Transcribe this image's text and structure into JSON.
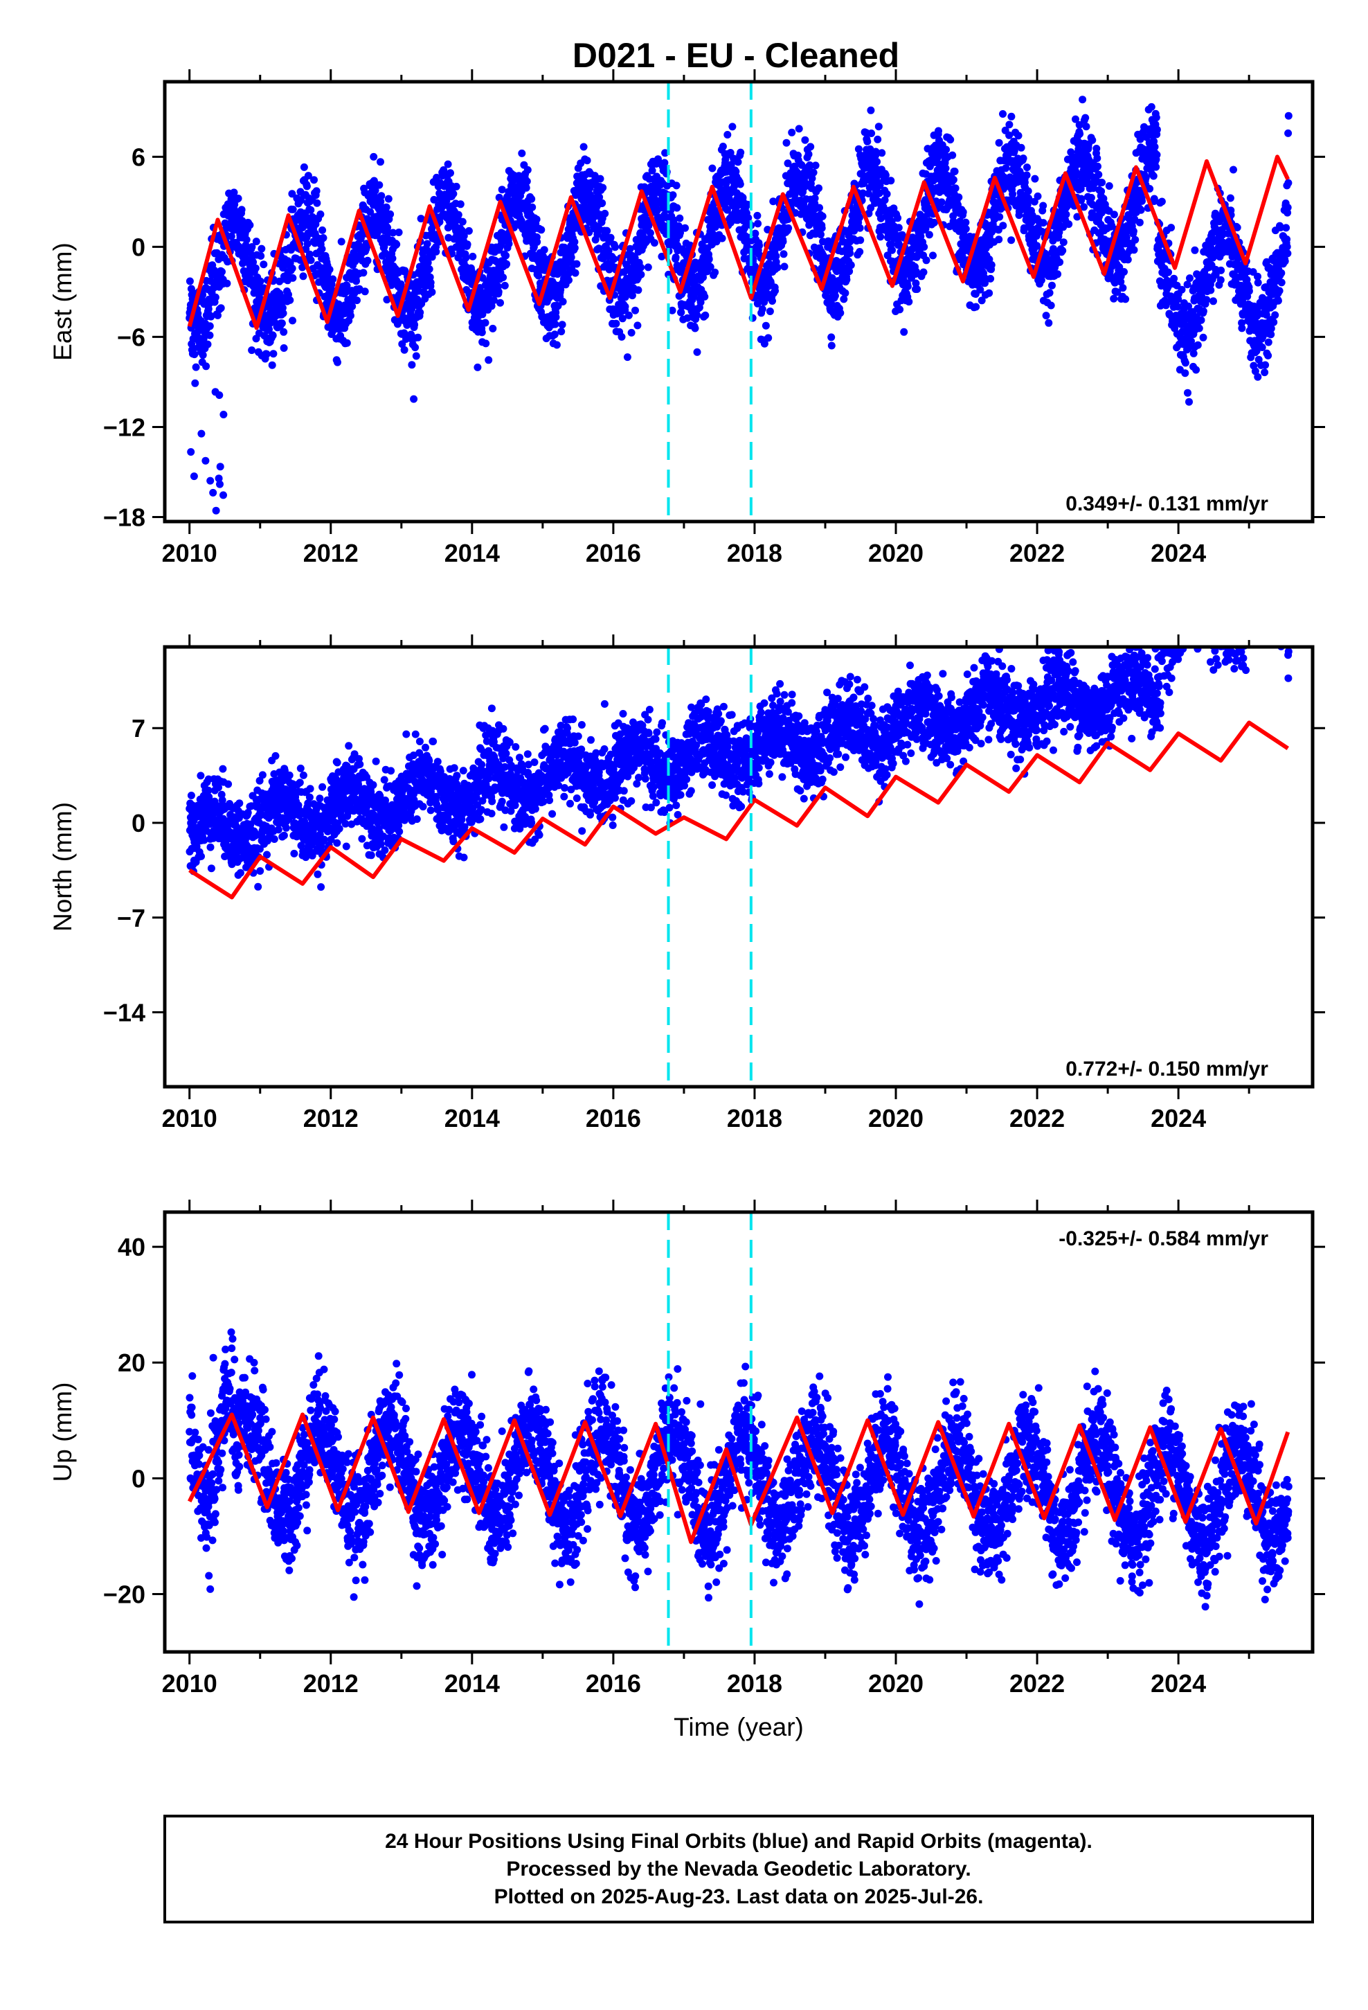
{
  "title": "D021  - EU - Cleaned",
  "colors": {
    "final_orbits": "#0000ff",
    "model": "#ff0000",
    "breaks": "#00e5ee",
    "frame": "#000000"
  },
  "chart_data": [
    {
      "type": "scatter",
      "ylabel": "East (mm)",
      "xlim": [
        2009.65,
        2025.9
      ],
      "ylim": [
        -18.3,
        11
      ],
      "yticks": [
        6,
        0,
        -6,
        -12,
        -18
      ],
      "xticks": [
        2010,
        2012,
        2014,
        2016,
        2018,
        2020,
        2022,
        2024
      ],
      "breaks": [
        2016.78,
        2017.95
      ],
      "rate": "0.349+/- 0.131 mm/yr",
      "rate_position": "bottom-right",
      "model": {
        "offset": -1.95,
        "slope": 0.35,
        "amp": 3.4,
        "phase": 0.38
      },
      "scatter_sigma": 1.5,
      "model_points": [
        [
          2010.0,
          -5.3
        ],
        [
          2010.4,
          1.8
        ],
        [
          2010.95,
          -5.4
        ],
        [
          2011.4,
          2.1
        ],
        [
          2011.95,
          -5.0
        ],
        [
          2012.4,
          2.4
        ],
        [
          2012.95,
          -4.6
        ],
        [
          2013.4,
          2.7
        ],
        [
          2013.95,
          -4.2
        ],
        [
          2014.4,
          3.0
        ],
        [
          2014.95,
          -3.8
        ],
        [
          2015.4,
          3.3
        ],
        [
          2015.95,
          -3.4
        ],
        [
          2016.4,
          3.7
        ],
        [
          2016.95,
          -3.0
        ],
        [
          2017.4,
          4.0
        ],
        [
          2017.95,
          -3.4
        ],
        [
          2018.4,
          3.5
        ],
        [
          2018.95,
          -2.8
        ],
        [
          2019.4,
          4.0
        ],
        [
          2019.95,
          -2.6
        ],
        [
          2020.4,
          4.3
        ],
        [
          2020.95,
          -2.3
        ],
        [
          2021.4,
          4.6
        ],
        [
          2021.95,
          -2.0
        ],
        [
          2022.4,
          4.9
        ],
        [
          2022.95,
          -1.8
        ],
        [
          2023.4,
          5.3
        ],
        [
          2023.95,
          -1.4
        ],
        [
          2024.4,
          5.7
        ],
        [
          2024.95,
          -1.1
        ],
        [
          2025.4,
          6.0
        ],
        [
          2025.55,
          4.5
        ]
      ],
      "data_anomalies": [
        {
          "x": [
            2010.0,
            2010.5
          ],
          "y": [
            -17.8,
            -9.0
          ],
          "note": "early noisy"
        },
        {
          "x": [
            2023.7,
            2025.55
          ],
          "y": [
            -9.5,
            1.0
          ],
          "note": "offset low"
        }
      ]
    },
    {
      "type": "scatter",
      "ylabel": "North (mm)",
      "xlim": [
        2009.65,
        2025.9
      ],
      "ylim": [
        -19.5,
        13
      ],
      "yticks": [
        7,
        0,
        -7,
        -14
      ],
      "xticks": [
        2010,
        2012,
        2014,
        2016,
        2018,
        2020,
        2022,
        2024
      ],
      "breaks": [
        2016.78,
        2017.95
      ],
      "rate": "0.772+/- 0.150 mm/yr",
      "rate_position": "bottom-right",
      "model": {
        "offset": -0.6,
        "slope": 0.772,
        "amp": 1.3,
        "phase": 0.05
      },
      "scatter_sigma": 1.4,
      "model_points": [
        [
          2010.0,
          -3.5
        ],
        [
          2010.6,
          -5.5
        ],
        [
          2011.0,
          -2.5
        ],
        [
          2011.6,
          -4.5
        ],
        [
          2012.0,
          -1.8
        ],
        [
          2012.6,
          -4.0
        ],
        [
          2013.0,
          -1.2
        ],
        [
          2013.6,
          -2.8
        ],
        [
          2014.0,
          -0.4
        ],
        [
          2014.6,
          -2.2
        ],
        [
          2015.0,
          0.3
        ],
        [
          2015.6,
          -1.6
        ],
        [
          2016.0,
          1.2
        ],
        [
          2016.6,
          -0.8
        ],
        [
          2017.0,
          0.4
        ],
        [
          2017.6,
          -1.2
        ],
        [
          2018.0,
          1.7
        ],
        [
          2018.6,
          -0.2
        ],
        [
          2019.0,
          2.6
        ],
        [
          2019.6,
          0.5
        ],
        [
          2020.0,
          3.4
        ],
        [
          2020.6,
          1.5
        ],
        [
          2021.0,
          4.3
        ],
        [
          2021.6,
          2.3
        ],
        [
          2022.0,
          5.0
        ],
        [
          2022.6,
          3.0
        ],
        [
          2023.0,
          5.9
        ],
        [
          2023.6,
          3.9
        ],
        [
          2024.0,
          6.6
        ],
        [
          2024.6,
          4.6
        ],
        [
          2025.0,
          7.4
        ],
        [
          2025.55,
          5.5
        ]
      ],
      "data_anomalies": [
        {
          "x": [
            2023.75,
            2025.55
          ],
          "y": [
            4.0,
            12.5
          ],
          "note": "offset high"
        }
      ]
    },
    {
      "type": "scatter",
      "ylabel": "Up (mm)",
      "xlim": [
        2009.65,
        2025.9
      ],
      "ylim": [
        -30,
        46
      ],
      "yticks": [
        40,
        20,
        0,
        -20
      ],
      "xticks": [
        2010,
        2012,
        2014,
        2016,
        2018,
        2020,
        2022,
        2024
      ],
      "xlabel": "Time (year)",
      "breaks": [
        2016.78,
        2017.95
      ],
      "rate": "-0.325+/- 0.584 mm/yr",
      "rate_position": "top-right",
      "model": {
        "offset": 2.0,
        "slope": -0.325,
        "amp": 8.2,
        "phase": 0.6
      },
      "scatter_sigma": 4.5,
      "model_points": [
        [
          2010.0,
          -4.0
        ],
        [
          2010.6,
          11.0
        ],
        [
          2011.1,
          -5.0
        ],
        [
          2011.6,
          11.0
        ],
        [
          2012.1,
          -5.5
        ],
        [
          2012.6,
          10.5
        ],
        [
          2013.1,
          -5.8
        ],
        [
          2013.6,
          10.2
        ],
        [
          2014.1,
          -6.0
        ],
        [
          2014.6,
          10.0
        ],
        [
          2015.1,
          -6.3
        ],
        [
          2015.6,
          9.7
        ],
        [
          2016.1,
          -6.5
        ],
        [
          2016.6,
          9.4
        ],
        [
          2017.1,
          -11.0
        ],
        [
          2017.6,
          5.0
        ],
        [
          2017.95,
          -8.0
        ],
        [
          2018.6,
          10.5
        ],
        [
          2019.1,
          -6.0
        ],
        [
          2019.6,
          10.0
        ],
        [
          2020.1,
          -6.3
        ],
        [
          2020.6,
          9.7
        ],
        [
          2021.1,
          -6.6
        ],
        [
          2021.6,
          9.4
        ],
        [
          2022.1,
          -6.9
        ],
        [
          2022.6,
          9.1
        ],
        [
          2023.1,
          -7.2
        ],
        [
          2023.6,
          8.8
        ],
        [
          2024.1,
          -7.5
        ],
        [
          2024.6,
          8.5
        ],
        [
          2025.1,
          -7.8
        ],
        [
          2025.55,
          8.0
        ]
      ],
      "data_anomalies": [
        {
          "x": [
            2010.3,
            2010.65
          ],
          "y": [
            10.0,
            44.5
          ],
          "note": "early spike"
        }
      ]
    }
  ],
  "caption": {
    "line1": "24 Hour Positions Using Final Orbits (blue) and Rapid Orbits (magenta).",
    "line2": "Processed by the Nevada Geodetic Laboratory.",
    "line3": "Plotted on 2025-Aug-23. Last data on 2025-Jul-26."
  }
}
